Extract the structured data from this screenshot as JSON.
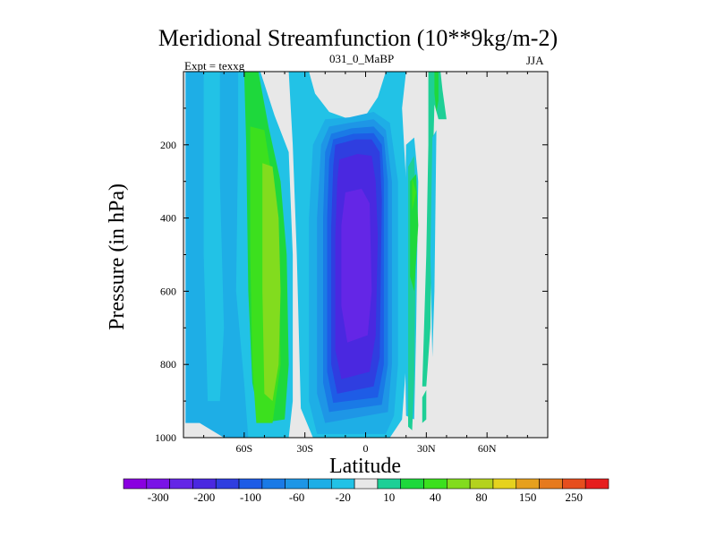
{
  "chart_data": {
    "type": "heatmap",
    "title": "Meridional Streamfunction (10**9kg/m-2)",
    "subtitle_left": "Expt = texxg",
    "subtitle_center": "031_0_MaBP",
    "subtitle_right": "JJA",
    "xlabel": "Latitude",
    "ylabel": "Pressure (in hPa)",
    "xlim": [
      -90,
      90
    ],
    "ylim": [
      1000,
      0
    ],
    "x_ticks": [
      {
        "value": -60,
        "label": "60S"
      },
      {
        "value": -30,
        "label": "30S"
      },
      {
        "value": 0,
        "label": "0"
      },
      {
        "value": 30,
        "label": "30N"
      },
      {
        "value": 60,
        "label": "60N"
      }
    ],
    "y_ticks": [
      {
        "value": 200,
        "label": "200"
      },
      {
        "value": 400,
        "label": "400"
      },
      {
        "value": 600,
        "label": "600"
      },
      {
        "value": 800,
        "label": "800"
      },
      {
        "value": 1000,
        "label": "1000"
      }
    ],
    "colorbar": {
      "colors": [
        "#8a00e0",
        "#7a14e6",
        "#6426e6",
        "#4a28e0",
        "#2f3ee0",
        "#1e5ce6",
        "#1a7ae6",
        "#1e96e6",
        "#1eaee6",
        "#22c2e6",
        "#e8e8e8",
        "#1ecf96",
        "#1ed83c",
        "#3ce01e",
        "#82dc1e",
        "#b4d21e",
        "#e6d21e",
        "#e6a01e",
        "#e67a1e",
        "#e64e1e",
        "#e61e1e"
      ],
      "labels": [
        {
          "index": 1,
          "text": "-300"
        },
        {
          "index": 3,
          "text": "-200"
        },
        {
          "index": 5,
          "text": "-100"
        },
        {
          "index": 7,
          "text": "-60"
        },
        {
          "index": 9,
          "text": "-20"
        },
        {
          "index": 11,
          "text": "10"
        },
        {
          "index": 13,
          "text": "40"
        },
        {
          "index": 15,
          "text": "80"
        },
        {
          "index": 17,
          "text": "150"
        },
        {
          "index": 19,
          "text": "250"
        }
      ]
    },
    "background_color": "#e8e8e8",
    "regions": [
      {
        "name": "sh-polar-cyan",
        "color": "#1eaee6",
        "points": [
          [
            -89,
            1000
          ],
          [
            -89,
            0
          ],
          [
            -60,
            0
          ],
          [
            -62,
            200
          ],
          [
            -58,
            600
          ],
          [
            -56,
            850
          ],
          [
            -58,
            1000
          ],
          [
            -70,
            1000
          ],
          [
            -82,
            960
          ],
          [
            -89,
            960
          ]
        ]
      },
      {
        "name": "sh-polar-light",
        "color": "#22c2e6",
        "points": [
          [
            -80,
            0
          ],
          [
            -72,
            0
          ],
          [
            -72,
            300
          ],
          [
            -70,
            700
          ],
          [
            -72,
            900
          ],
          [
            -78,
            900
          ],
          [
            -80,
            500
          ]
        ]
      },
      {
        "name": "sh-ferrel-cyan",
        "color": "#22c2e6",
        "points": [
          [
            -63,
            0
          ],
          [
            -52,
            0
          ],
          [
            -45,
            120
          ],
          [
            -38,
            220
          ],
          [
            -36,
            500
          ],
          [
            -36,
            900
          ],
          [
            -38,
            1000
          ],
          [
            -58,
            1000
          ],
          [
            -60,
            850
          ],
          [
            -64,
            600
          ],
          [
            -63,
            200
          ]
        ]
      },
      {
        "name": "sh-ferrel-green",
        "color": "#1ed83c",
        "points": [
          [
            -60,
            0
          ],
          [
            -53,
            0
          ],
          [
            -48,
            150
          ],
          [
            -42,
            300
          ],
          [
            -39,
            500
          ],
          [
            -38,
            800
          ],
          [
            -40,
            950
          ],
          [
            -52,
            960
          ],
          [
            -56,
            850
          ],
          [
            -58,
            600
          ],
          [
            -59,
            200
          ]
        ]
      },
      {
        "name": "sh-ferrel-lime",
        "color": "#3ce01e",
        "points": [
          [
            -57,
            150
          ],
          [
            -50,
            160
          ],
          [
            -46,
            300
          ],
          [
            -43,
            500
          ],
          [
            -42,
            800
          ],
          [
            -46,
            960
          ],
          [
            -54,
            960
          ],
          [
            -56,
            800
          ],
          [
            -57,
            500
          ]
        ]
      },
      {
        "name": "sh-ferrel-core",
        "color": "#82dc1e",
        "points": [
          [
            -51,
            250
          ],
          [
            -46,
            260
          ],
          [
            -43,
            400
          ],
          [
            -42,
            600
          ],
          [
            -43,
            800
          ],
          [
            -46,
            900
          ],
          [
            -50,
            880
          ],
          [
            -51,
            600
          ]
        ]
      },
      {
        "name": "hadley-shell-1",
        "color": "#22c2e6",
        "points": [
          [
            -38,
            0
          ],
          [
            -28,
            0
          ],
          [
            -25,
            60
          ],
          [
            -18,
            110
          ],
          [
            -8,
            130
          ],
          [
            0,
            120
          ],
          [
            6,
            70
          ],
          [
            10,
            0
          ],
          [
            20,
            0
          ],
          [
            18,
            100
          ],
          [
            20,
            300
          ],
          [
            20,
            800
          ],
          [
            18,
            950
          ],
          [
            12,
            1000
          ],
          [
            -26,
            1000
          ],
          [
            -32,
            920
          ],
          [
            -34,
            500
          ],
          [
            -36,
            200
          ]
        ]
      },
      {
        "name": "hadley-shell-2",
        "color": "#1eaee6",
        "points": [
          [
            -20,
            130
          ],
          [
            -8,
            125
          ],
          [
            4,
            110
          ],
          [
            12,
            140
          ],
          [
            16,
            300
          ],
          [
            16,
            800
          ],
          [
            14,
            940
          ],
          [
            10,
            990
          ],
          [
            -24,
            990
          ],
          [
            -28,
            900
          ],
          [
            -28,
            400
          ],
          [
            -26,
            200
          ]
        ]
      },
      {
        "name": "hadley-shell-3",
        "color": "#1e96e6",
        "points": [
          [
            -18,
            150
          ],
          [
            -8,
            140
          ],
          [
            4,
            130
          ],
          [
            10,
            160
          ],
          [
            13,
            300
          ],
          [
            13,
            800
          ],
          [
            11,
            930
          ],
          [
            -20,
            960
          ],
          [
            -24,
            880
          ],
          [
            -24,
            400
          ],
          [
            -22,
            200
          ]
        ]
      },
      {
        "name": "hadley-shell-4",
        "color": "#1a7ae6",
        "points": [
          [
            -17,
            170
          ],
          [
            -7,
            155
          ],
          [
            4,
            150
          ],
          [
            9,
            180
          ],
          [
            11,
            300
          ],
          [
            11,
            800
          ],
          [
            8,
            910
          ],
          [
            -18,
            930
          ],
          [
            -21,
            850
          ],
          [
            -21,
            400
          ],
          [
            -20,
            220
          ]
        ]
      },
      {
        "name": "hadley-shell-5",
        "color": "#1e5ce6",
        "points": [
          [
            -16,
            185
          ],
          [
            -6,
            170
          ],
          [
            4,
            168
          ],
          [
            8,
            200
          ],
          [
            9,
            300
          ],
          [
            9,
            800
          ],
          [
            6,
            890
          ],
          [
            -16,
            905
          ],
          [
            -19,
            820
          ],
          [
            -19,
            400
          ],
          [
            -18,
            240
          ]
        ]
      },
      {
        "name": "hadley-shell-6",
        "color": "#2f3ee0",
        "points": [
          [
            -15,
            200
          ],
          [
            -5,
            185
          ],
          [
            3,
            185
          ],
          [
            7,
            220
          ],
          [
            8,
            350
          ],
          [
            7,
            780
          ],
          [
            4,
            860
          ],
          [
            -14,
            880
          ],
          [
            -17,
            800
          ],
          [
            -17,
            420
          ],
          [
            -16,
            260
          ]
        ]
      },
      {
        "name": "hadley-shell-7",
        "color": "#4a28e0",
        "points": [
          [
            -13,
            240
          ],
          [
            -4,
            225
          ],
          [
            3,
            230
          ],
          [
            5,
            300
          ],
          [
            6,
            450
          ],
          [
            5,
            720
          ],
          [
            2,
            820
          ],
          [
            -12,
            840
          ],
          [
            -15,
            760
          ],
          [
            -15,
            450
          ],
          [
            -14,
            300
          ]
        ]
      },
      {
        "name": "hadley-core",
        "color": "#6426e6",
        "points": [
          [
            -10,
            330
          ],
          [
            -2,
            320
          ],
          [
            2,
            360
          ],
          [
            3,
            600
          ],
          [
            1,
            720
          ],
          [
            -9,
            740
          ],
          [
            -12,
            640
          ],
          [
            -12,
            420
          ]
        ]
      },
      {
        "name": "nh-cyan-strip",
        "color": "#22c2e6",
        "points": [
          [
            20,
            200
          ],
          [
            24,
            180
          ],
          [
            26,
            300
          ],
          [
            25,
            700
          ],
          [
            24,
            950
          ],
          [
            20,
            940
          ],
          [
            19,
            600
          ]
        ]
      },
      {
        "name": "nh-teal-strip",
        "color": "#1ecf96",
        "points": [
          [
            21,
            260
          ],
          [
            24,
            230
          ],
          [
            25,
            400
          ],
          [
            24,
            850
          ],
          [
            23,
            980
          ],
          [
            21,
            970
          ],
          [
            21,
            600
          ]
        ]
      },
      {
        "name": "nh-green-strip",
        "color": "#1ed83c",
        "points": [
          [
            22,
            300
          ],
          [
            25,
            280
          ],
          [
            26,
            420
          ],
          [
            24,
            600
          ],
          [
            22,
            560
          ]
        ]
      },
      {
        "name": "nh-lime-dots",
        "color": "#3ce01e",
        "points": [
          [
            23,
            290
          ],
          [
            25,
            330
          ],
          [
            23,
            380
          ]
        ]
      },
      {
        "name": "nh-green-tower",
        "color": "#1ecf96",
        "points": [
          [
            31,
            0
          ],
          [
            37,
            0
          ],
          [
            38,
            50
          ],
          [
            40,
            130
          ],
          [
            36,
            130
          ],
          [
            34,
            90
          ],
          [
            33,
            300
          ],
          [
            32,
            700
          ],
          [
            30,
            860
          ],
          [
            28,
            860
          ],
          [
            30,
            500
          ],
          [
            31,
            200
          ]
        ]
      },
      {
        "name": "nh-green-high",
        "color": "#1ed83c",
        "points": [
          [
            34,
            0
          ],
          [
            36,
            0
          ],
          [
            36,
            80
          ],
          [
            35,
            110
          ],
          [
            34,
            60
          ]
        ]
      },
      {
        "name": "nh-cyan-sliver",
        "color": "#22c2e6",
        "points": [
          [
            33,
            180
          ],
          [
            35,
            160
          ],
          [
            34,
            600
          ],
          [
            33,
            780
          ],
          [
            32,
            500
          ]
        ]
      },
      {
        "name": "nh-fringe",
        "color": "#1ecf96",
        "points": [
          [
            28,
            890
          ],
          [
            30,
            870
          ],
          [
            30,
            950
          ],
          [
            28,
            960
          ]
        ]
      }
    ]
  }
}
